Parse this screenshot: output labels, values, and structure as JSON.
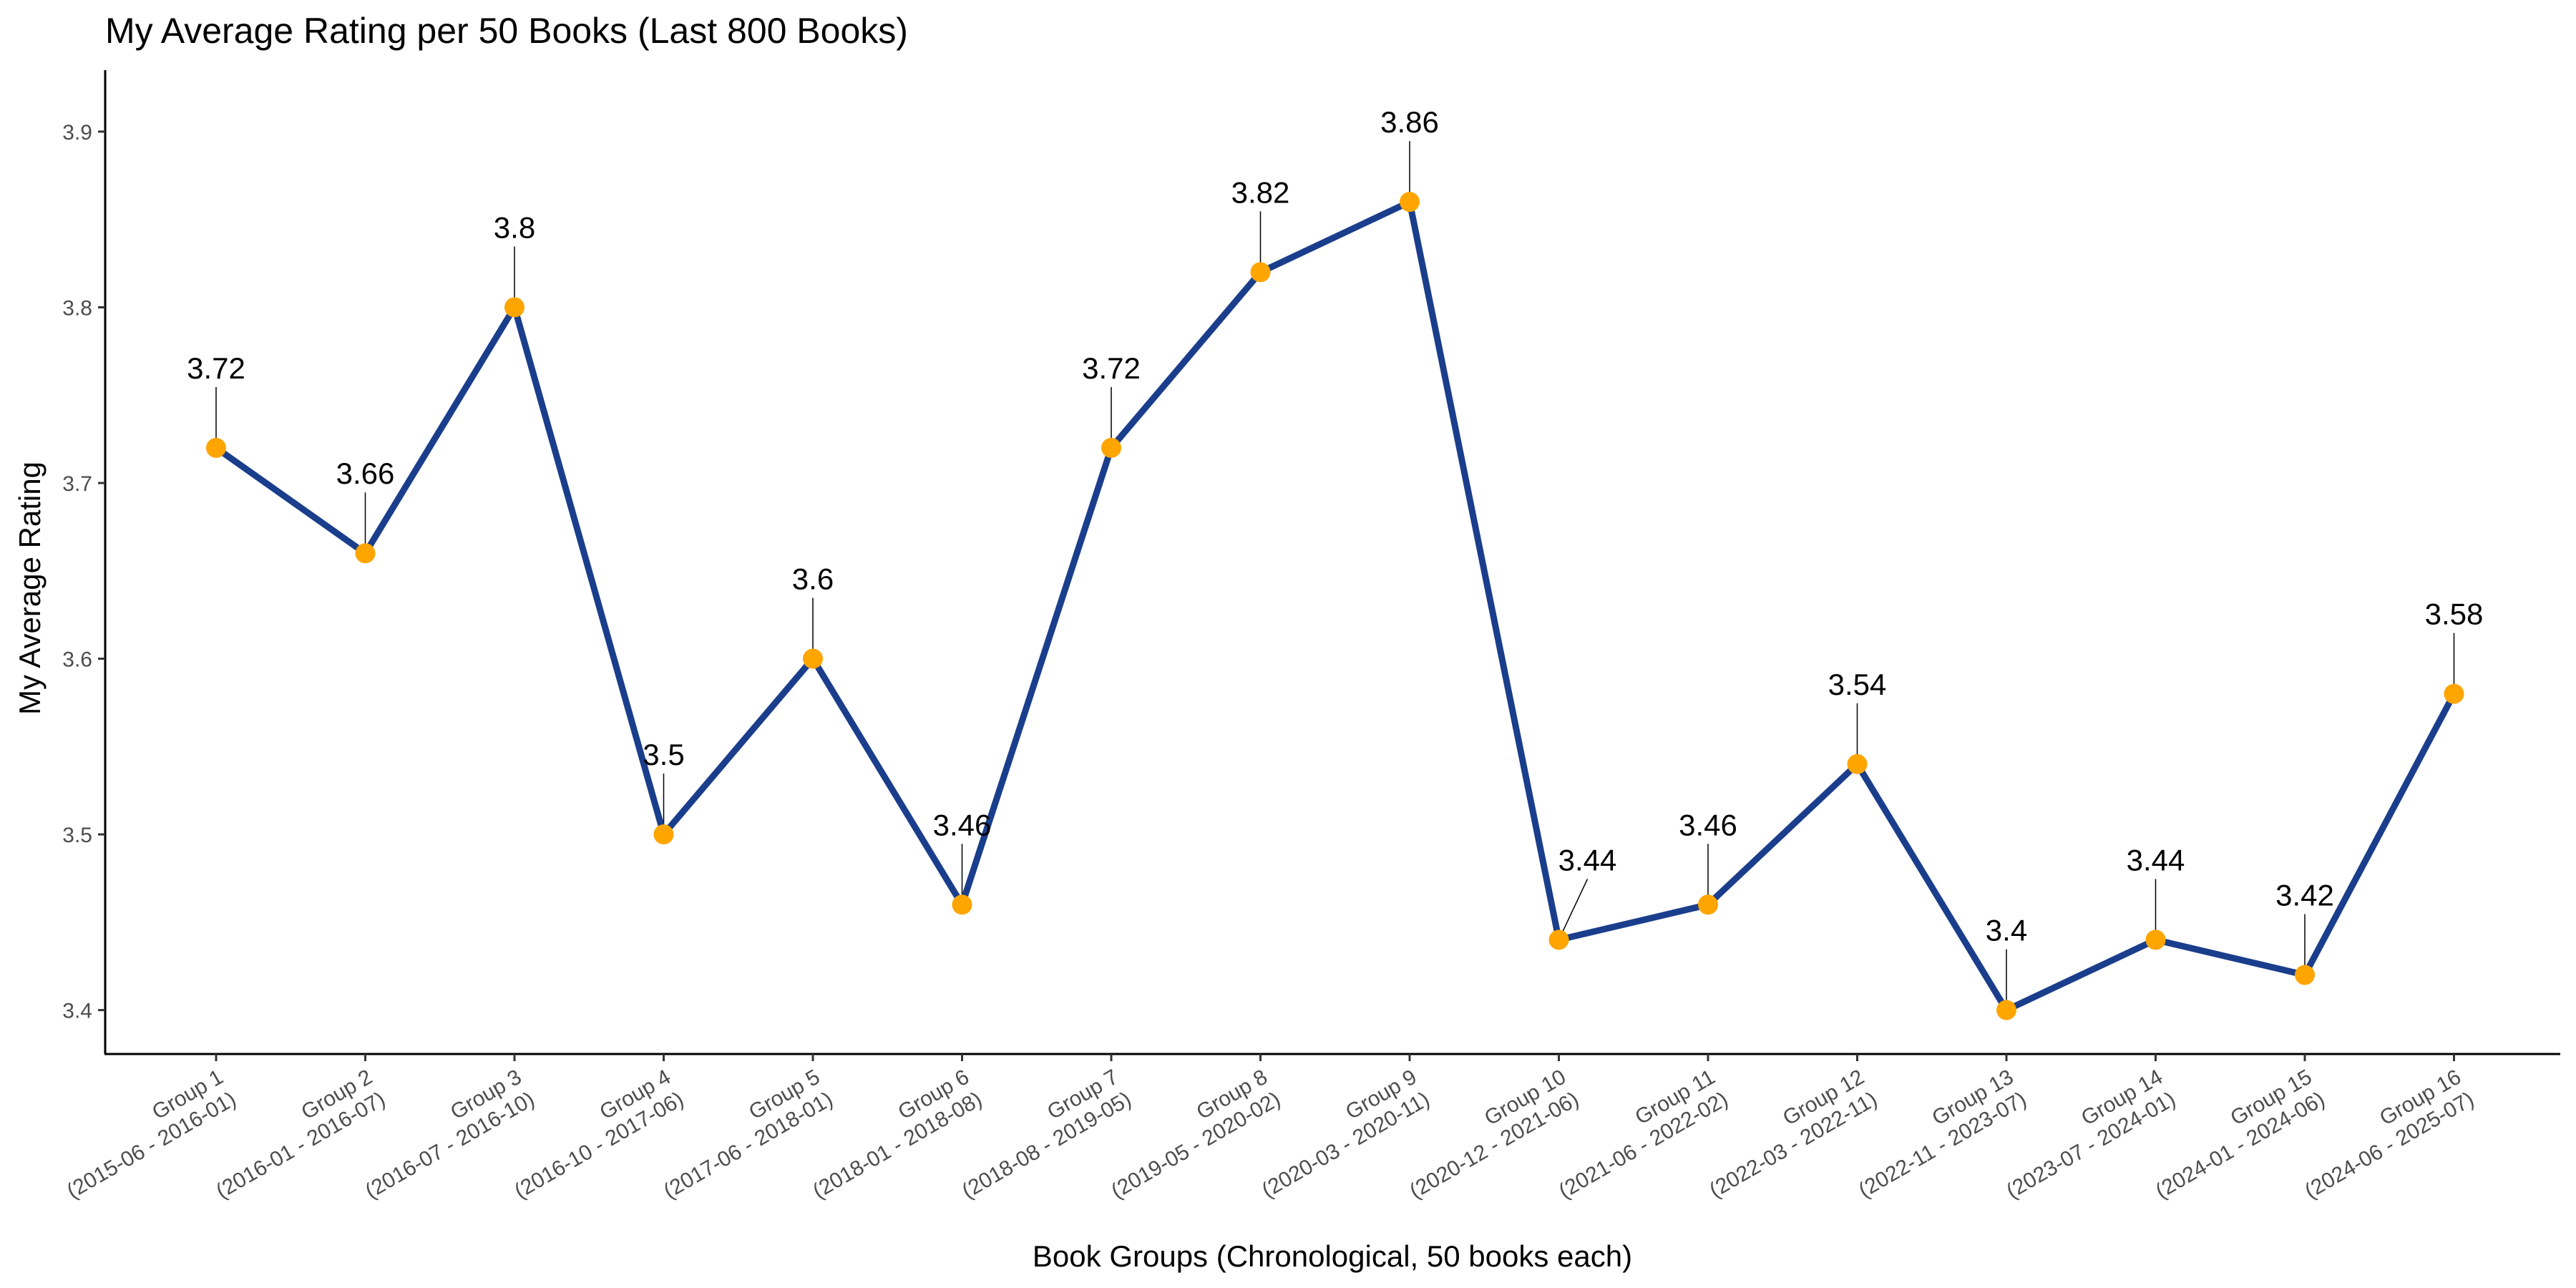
{
  "chart_data": {
    "type": "line",
    "title": "My Average Rating per 50 Books (Last 800 Books)",
    "xlabel": "Book Groups (Chronological, 50 books each)",
    "ylabel": "My Average Rating",
    "ylim": [
      3.375,
      3.935
    ],
    "yticks": [
      "3.4",
      "3.5",
      "3.6",
      "3.7",
      "3.8",
      "3.9"
    ],
    "grid": false,
    "line_color": "#1A3E8C",
    "point_color": "#FFA500",
    "categories": [
      [
        "Group 1",
        "(2015-06 - 2016-01)"
      ],
      [
        "Group 2",
        "(2016-01 - 2016-07)"
      ],
      [
        "Group 3",
        "(2016-07 - 2016-10)"
      ],
      [
        "Group 4",
        "(2016-10 - 2017-06)"
      ],
      [
        "Group 5",
        "(2017-06 - 2018-01)"
      ],
      [
        "Group 6",
        "(2018-01 - 2018-08)"
      ],
      [
        "Group 7",
        "(2018-08 - 2019-05)"
      ],
      [
        "Group 8",
        "(2019-05 - 2020-02)"
      ],
      [
        "Group 9",
        "(2020-03 - 2020-11)"
      ],
      [
        "Group 10",
        "(2020-12 - 2021-06)"
      ],
      [
        "Group 11",
        "(2021-06 - 2022-02)"
      ],
      [
        "Group 12",
        "(2022-03 - 2022-11)"
      ],
      [
        "Group 13",
        "(2022-11 - 2023-07)"
      ],
      [
        "Group 14",
        "(2023-07 - 2024-01)"
      ],
      [
        "Group 15",
        "(2024-01 - 2024-06)"
      ],
      [
        "Group 16",
        "(2024-06 - 2025-07)"
      ]
    ],
    "values": [
      3.72,
      3.66,
      3.8,
      3.5,
      3.6,
      3.46,
      3.72,
      3.82,
      3.86,
      3.44,
      3.46,
      3.54,
      3.4,
      3.44,
      3.42,
      3.58
    ],
    "data_labels": [
      "3.72",
      "3.66",
      "3.8",
      "3.5",
      "3.6",
      "3.46",
      "3.72",
      "3.82",
      "3.86",
      "3.44",
      "3.46",
      "3.54",
      "3.4",
      "3.44",
      "3.42",
      "3.58"
    ]
  }
}
